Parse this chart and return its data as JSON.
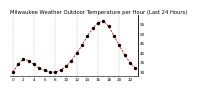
{
  "title": "Milwaukee Weather Outdoor Temperature per Hour (Last 24 Hours)",
  "hours": [
    0,
    1,
    2,
    3,
    4,
    5,
    6,
    7,
    8,
    9,
    10,
    11,
    12,
    13,
    14,
    15,
    16,
    17,
    18,
    19,
    20,
    21,
    22,
    23
  ],
  "temps": [
    30,
    34,
    37,
    36,
    34,
    32,
    31,
    30,
    30,
    31,
    33,
    36,
    40,
    44,
    49,
    53,
    56,
    57,
    54,
    49,
    44,
    39,
    35,
    32
  ],
  "line_color": "#dd0000",
  "marker_color": "#000000",
  "background_color": "#ffffff",
  "grid_color": "#888888",
  "ylim": [
    28,
    60
  ],
  "yticks": [
    30,
    35,
    40,
    45,
    50,
    55
  ],
  "ytick_labels": [
    "30",
    "35",
    "40",
    "45",
    "50",
    "55"
  ],
  "xtick_step": 2,
  "vgrid_positions": [
    0,
    4,
    8,
    12,
    16,
    20
  ],
  "title_fontsize": 3.8,
  "tick_fontsize": 3.0,
  "line_width": 0.6,
  "marker_size": 2.0
}
